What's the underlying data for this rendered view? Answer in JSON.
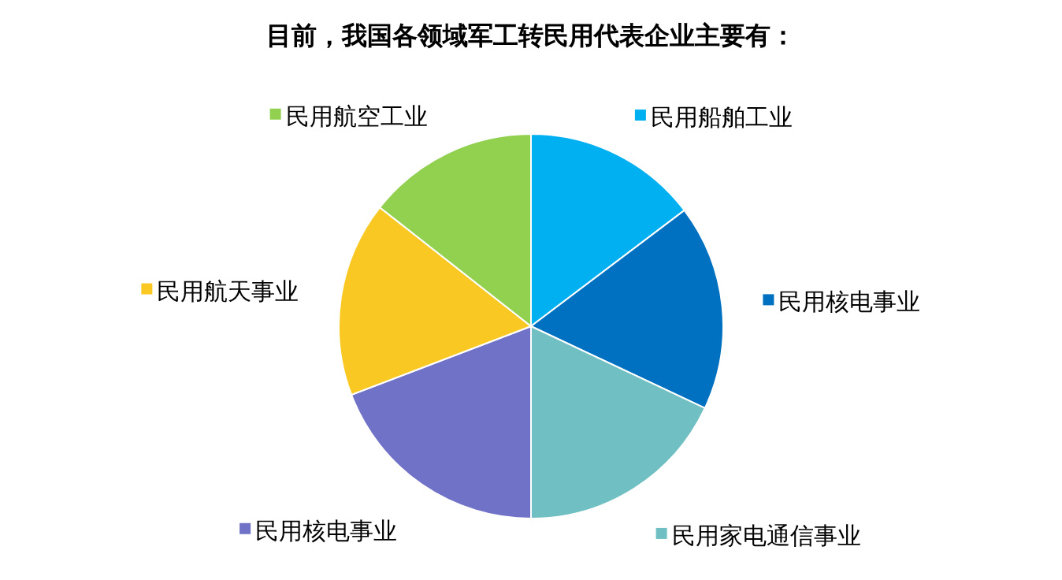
{
  "chart_data": {
    "type": "pie",
    "title": "目前，我国各领域军工转民用代表企业主要有：",
    "categories": [
      "民用船舶工业",
      "民用核电事业",
      "民用家电通信事业",
      "民用核电事业",
      "民用航天事业",
      "民用航空工业"
    ],
    "values": [
      14.7,
      17.3,
      18.0,
      19.2,
      16.4,
      14.4
    ],
    "colors": [
      "#00b0f0",
      "#0070c0",
      "#70bfc3",
      "#7072c8",
      "#f9c823",
      "#92d050"
    ],
    "legend": "right"
  }
}
